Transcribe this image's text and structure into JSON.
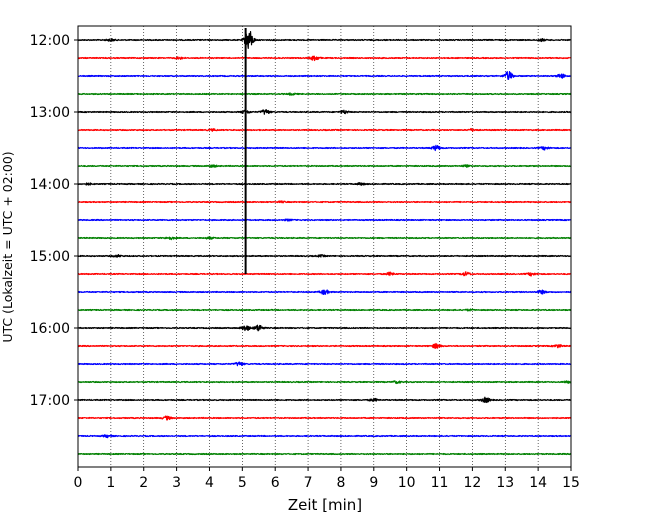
{
  "chart_data": {
    "type": "line",
    "subtype": "helicorder-seismogram",
    "xlabel": "Zeit  [min]",
    "ylabel": "UTC (Lokalzeit = UTC + 02:00)",
    "xlim": [
      0,
      15
    ],
    "x_ticks": [
      0,
      1,
      2,
      3,
      4,
      5,
      6,
      7,
      8,
      9,
      10,
      11,
      12,
      13,
      14,
      15
    ],
    "x_tick_labels": [
      "0",
      "1",
      "2",
      "3",
      "4",
      "5",
      "6",
      "7",
      "8",
      "9",
      "10",
      "11",
      "12",
      "13",
      "14",
      "15"
    ],
    "y_ticks": [
      "12:00",
      "13:00",
      "14:00",
      "15:00",
      "16:00",
      "17:00"
    ],
    "y_tick_trace_index": [
      0,
      4,
      8,
      12,
      16,
      20
    ],
    "minutes_per_trace": 15,
    "grid": "vertical-dotted",
    "color_cycle": [
      "#000000",
      "#ff0000",
      "#0000ff",
      "#008000"
    ],
    "traces": [
      {
        "start": "12:00",
        "events": [
          {
            "t": 1.0,
            "amp": 0.25
          },
          {
            "t": 5.2,
            "amp": 2.5
          },
          {
            "t": 14.1,
            "amp": 0.25
          }
        ]
      },
      {
        "start": "12:15",
        "events": [
          {
            "t": 3.1,
            "amp": 0.25
          },
          {
            "t": 7.2,
            "amp": 0.6
          }
        ]
      },
      {
        "start": "12:30",
        "events": [
          {
            "t": 13.1,
            "amp": 1.1
          },
          {
            "t": 14.7,
            "amp": 0.5
          }
        ]
      },
      {
        "start": "12:45",
        "events": [
          {
            "t": 6.5,
            "amp": 0.2
          }
        ]
      },
      {
        "start": "13:00",
        "events": [
          {
            "t": 5.1,
            "amp": 0.4
          },
          {
            "t": 5.7,
            "amp": 0.6
          },
          {
            "t": 8.1,
            "amp": 0.4
          }
        ]
      },
      {
        "start": "13:15",
        "events": [
          {
            "t": 4.1,
            "amp": 0.2
          },
          {
            "t": 12.0,
            "amp": 0.25
          }
        ]
      },
      {
        "start": "13:30",
        "events": [
          {
            "t": 10.9,
            "amp": 0.6
          },
          {
            "t": 14.2,
            "amp": 0.35
          }
        ]
      },
      {
        "start": "13:45",
        "events": [
          {
            "t": 4.1,
            "amp": 0.25
          },
          {
            "t": 11.8,
            "amp": 0.2
          }
        ]
      },
      {
        "start": "14:00",
        "events": [
          {
            "t": 0.3,
            "amp": 0.2
          },
          {
            "t": 8.6,
            "amp": 0.25
          }
        ]
      },
      {
        "start": "14:15",
        "events": [
          {
            "t": 6.2,
            "amp": 0.15
          }
        ]
      },
      {
        "start": "14:30",
        "events": [
          {
            "t": 6.4,
            "amp": 0.15
          }
        ]
      },
      {
        "start": "14:45",
        "events": [
          {
            "t": 2.8,
            "amp": 0.3
          },
          {
            "t": 4.0,
            "amp": 0.2
          }
        ]
      },
      {
        "start": "15:00",
        "events": [
          {
            "t": 1.2,
            "amp": 0.25
          },
          {
            "t": 7.4,
            "amp": 0.2
          }
        ]
      },
      {
        "start": "15:15",
        "events": [
          {
            "t": 9.5,
            "amp": 0.35
          },
          {
            "t": 11.8,
            "amp": 0.45
          },
          {
            "t": 13.8,
            "amp": 0.35
          }
        ]
      },
      {
        "start": "15:30",
        "events": [
          {
            "t": 7.5,
            "amp": 0.6
          },
          {
            "t": 14.1,
            "amp": 0.4
          }
        ]
      },
      {
        "start": "15:45",
        "events": [
          {
            "t": 11.9,
            "amp": 0.15
          }
        ]
      },
      {
        "start": "16:00",
        "events": [
          {
            "t": 5.1,
            "amp": 0.7
          },
          {
            "t": 5.5,
            "amp": 0.8
          }
        ]
      },
      {
        "start": "16:15",
        "events": [
          {
            "t": 10.9,
            "amp": 0.55
          },
          {
            "t": 14.6,
            "amp": 0.35
          }
        ]
      },
      {
        "start": "16:30",
        "events": [
          {
            "t": 4.9,
            "amp": 0.45
          }
        ]
      },
      {
        "start": "16:45",
        "events": [
          {
            "t": 9.7,
            "amp": 0.25
          },
          {
            "t": 14.9,
            "amp": 0.2
          }
        ]
      },
      {
        "start": "17:00",
        "events": [
          {
            "t": 9.0,
            "amp": 0.3
          },
          {
            "t": 12.4,
            "amp": 0.6
          }
        ]
      },
      {
        "start": "17:15",
        "events": [
          {
            "t": 2.7,
            "amp": 0.4
          }
        ]
      },
      {
        "start": "17:30",
        "events": [
          {
            "t": 0.9,
            "amp": 0.3
          }
        ]
      },
      {
        "start": "17:45",
        "events": []
      }
    ],
    "long_event": {
      "t": 5.1,
      "from_trace": 0,
      "to_trace": 13
    }
  }
}
